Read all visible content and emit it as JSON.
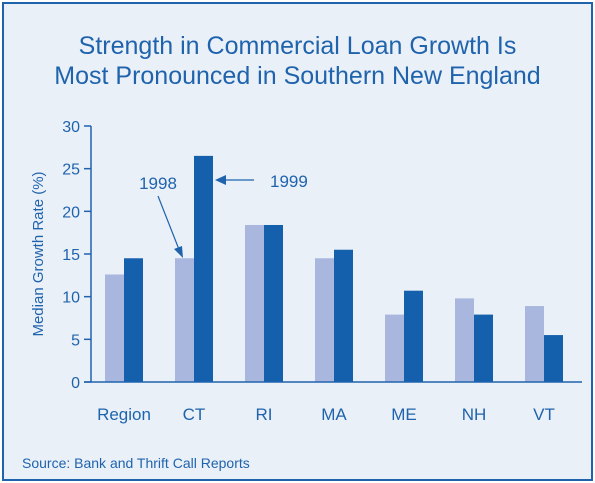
{
  "chart_data": {
    "type": "bar",
    "title_line1": "Strength in Commercial Loan Growth Is",
    "title_line2": "Most Pronounced in Southern New England",
    "ylabel": "Median Growth Rate (%)",
    "xlabel": "",
    "ylim": [
      0,
      30
    ],
    "yticks": [
      0,
      5,
      10,
      15,
      20,
      25,
      30
    ],
    "categories": [
      "Region",
      "CT",
      "RI",
      "MA",
      "ME",
      "NH",
      "VT"
    ],
    "series": [
      {
        "name": "1998",
        "color": "#a9b7df",
        "values": [
          12.6,
          14.5,
          18.4,
          14.5,
          7.9,
          9.8,
          8.9
        ]
      },
      {
        "name": "1999",
        "color": "#1460ad",
        "values": [
          14.5,
          26.5,
          18.4,
          15.5,
          10.7,
          7.9,
          5.5
        ]
      }
    ],
    "annotations": [
      "1998",
      "1999"
    ],
    "source": "Source: Bank and Thrift Call Reports"
  }
}
